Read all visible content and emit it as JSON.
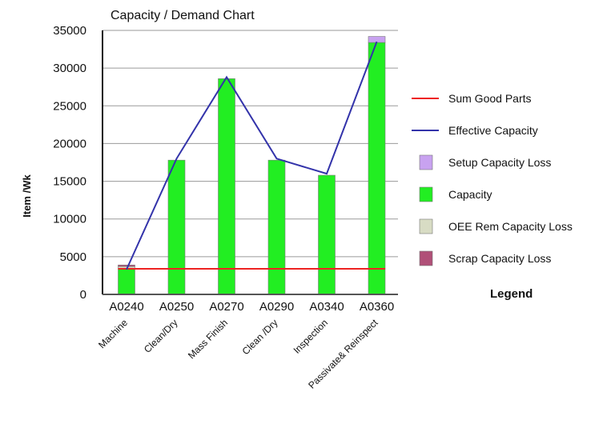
{
  "chart_data": {
    "type": "bar",
    "title": "Capacity / Demand Chart",
    "ylabel": "Item /Wk",
    "xlabel": "",
    "ylim": [
      0,
      35000
    ],
    "yticks": [
      0,
      5000,
      10000,
      15000,
      20000,
      25000,
      30000,
      35000
    ],
    "grid": true,
    "categories": [
      "A0240",
      "A0250",
      "A0270",
      "A0290",
      "A0340",
      "A0360"
    ],
    "category_sublabels": [
      "Machine",
      "Clean/Dry",
      "Mass Finish",
      "Clean /Dry",
      "Inspection",
      "Passivate& Reinspect"
    ],
    "stacked_series": [
      {
        "name": "Capacity",
        "color": "#22ee22",
        "values": [
          3400,
          17800,
          28600,
          17800,
          15800,
          33400
        ]
      },
      {
        "name": "OEE Rem Capacity Loss",
        "color": "#d8dcc4",
        "values": [
          300,
          0,
          0,
          0,
          0,
          0
        ]
      },
      {
        "name": "Scrap Capacity Loss",
        "color": "#b05078",
        "values": [
          200,
          0,
          0,
          0,
          0,
          0
        ]
      },
      {
        "name": "Setup Capacity Loss",
        "color": "#c8a2f0",
        "values": [
          0,
          0,
          0,
          0,
          0,
          800
        ]
      }
    ],
    "line_series": [
      {
        "name": "Sum Good Parts",
        "color": "#ee2222",
        "values": [
          3400,
          3400,
          3400,
          3400,
          3400,
          3400
        ],
        "style": "flat"
      },
      {
        "name": "Effective Capacity",
        "color": "#3333aa",
        "values": [
          3300,
          18000,
          28800,
          18000,
          16000,
          33500
        ]
      }
    ],
    "legend": {
      "title": "Legend",
      "position": "right",
      "entries": [
        {
          "label": "Sum Good Parts",
          "kind": "line",
          "color": "#ee2222"
        },
        {
          "label": "Effective Capacity",
          "kind": "line",
          "color": "#3333aa"
        },
        {
          "label": "Setup Capacity Loss",
          "kind": "box",
          "color": "#c8a2f0"
        },
        {
          "label": "Capacity",
          "kind": "box",
          "color": "#22ee22"
        },
        {
          "label": "OEE Rem Capacity Loss",
          "kind": "box",
          "color": "#d8dcc4"
        },
        {
          "label": "Scrap Capacity Loss",
          "kind": "box",
          "color": "#b05078"
        }
      ]
    }
  }
}
